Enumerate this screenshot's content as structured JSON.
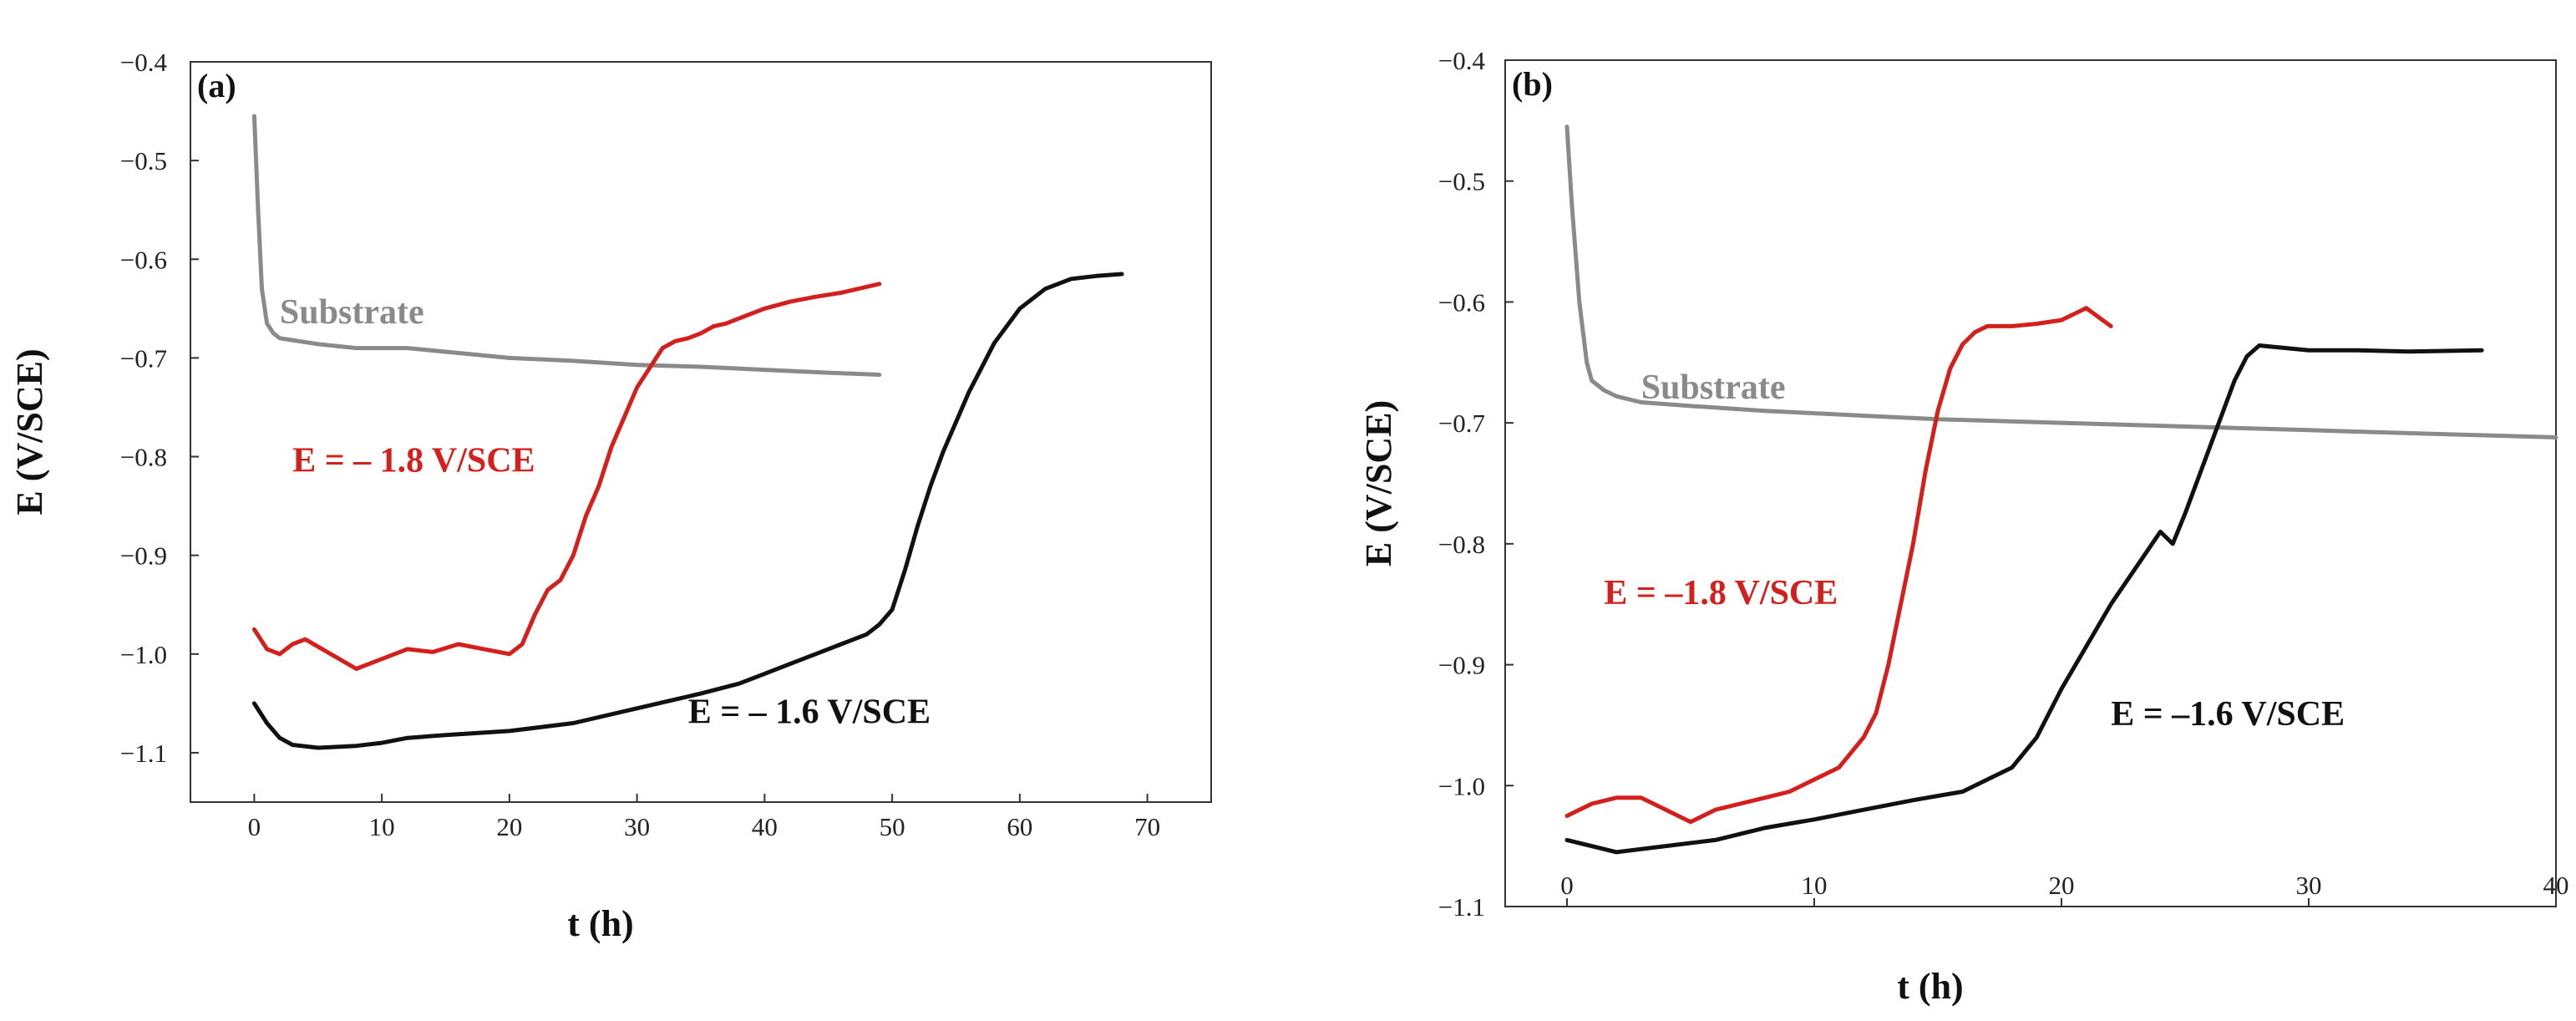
{
  "chart_data": [
    {
      "type": "line",
      "panel_label": "(a)",
      "xlabel": "t (h)",
      "ylabel": "E (V/SCE)",
      "xlim": [
        -5,
        75
      ],
      "ylim": [
        -1.15,
        -0.4
      ],
      "xticks": [
        0,
        10,
        20,
        30,
        40,
        50,
        60,
        70
      ],
      "xtick_labels": [
        "0",
        "10",
        "20",
        "30",
        "40",
        "50",
        "60",
        "70"
      ],
      "yticks": [
        -0.4,
        -0.5,
        -0.6,
        -0.7,
        -0.8,
        -0.9,
        -1.0,
        -1.1
      ],
      "ytick_labels": [
        "−0.4",
        "−0.5",
        "−0.6",
        "−0.7",
        "−0.8",
        "−0.9",
        "−1.0",
        "−1.1"
      ],
      "series": [
        {
          "name": "Substrate",
          "color": "#8a8a8a",
          "x": [
            0,
            0.3,
            0.6,
            1,
            1.5,
            2,
            3,
            5,
            8,
            12,
            16,
            20,
            25,
            30,
            35,
            40,
            45,
            49
          ],
          "y": [
            -0.455,
            -0.55,
            -0.63,
            -0.665,
            -0.675,
            -0.68,
            -0.682,
            -0.686,
            -0.69,
            -0.69,
            -0.695,
            -0.7,
            -0.703,
            -0.707,
            -0.709,
            -0.712,
            -0.715,
            -0.717
          ]
        },
        {
          "name": "E = – 1.8 V/SCE",
          "color": "#d4201c",
          "x": [
            0,
            1,
            2,
            3,
            4,
            6,
            8,
            10,
            12,
            14,
            16,
            18,
            20,
            21,
            22,
            23,
            24,
            25,
            26,
            27,
            28,
            29,
            30,
            31,
            32,
            33,
            34,
            35,
            36,
            37,
            38,
            40,
            42,
            44,
            46,
            48,
            49
          ],
          "y": [
            -0.975,
            -0.995,
            -1.0,
            -0.99,
            -0.985,
            -1.0,
            -1.015,
            -1.005,
            -0.995,
            -0.998,
            -0.99,
            -0.995,
            -1.0,
            -0.99,
            -0.96,
            -0.935,
            -0.925,
            -0.9,
            -0.86,
            -0.83,
            -0.79,
            -0.76,
            -0.73,
            -0.71,
            -0.69,
            -0.683,
            -0.68,
            -0.675,
            -0.668,
            -0.665,
            -0.66,
            -0.65,
            -0.643,
            -0.638,
            -0.634,
            -0.628,
            -0.625
          ]
        },
        {
          "name": "E = – 1.6 V/SCE",
          "color": "#111111",
          "x": [
            0,
            1,
            2,
            3,
            5,
            8,
            10,
            12,
            15,
            20,
            25,
            30,
            35,
            38,
            40,
            42,
            44,
            46,
            48,
            49,
            50,
            51,
            52,
            53,
            54,
            55,
            56,
            57,
            58,
            60,
            62,
            64,
            66,
            68
          ],
          "y": [
            -1.05,
            -1.07,
            -1.085,
            -1.092,
            -1.095,
            -1.093,
            -1.09,
            -1.085,
            -1.082,
            -1.078,
            -1.07,
            -1.055,
            -1.04,
            -1.03,
            -1.02,
            -1.01,
            -1.0,
            -0.99,
            -0.98,
            -0.97,
            -0.955,
            -0.915,
            -0.87,
            -0.83,
            -0.795,
            -0.765,
            -0.735,
            -0.71,
            -0.685,
            -0.65,
            -0.63,
            -0.62,
            -0.617,
            -0.615
          ]
        }
      ],
      "annotations": [
        {
          "text": "Substrate",
          "x": 2,
          "y": -0.665,
          "color": "#8a8a8a"
        },
        {
          "text": "E = – 1.8 V/SCE",
          "x": 3,
          "y": -0.815,
          "color": "#d4201c"
        },
        {
          "text": "E = – 1.6 V/SCE",
          "x": 34,
          "y": -1.07,
          "color": "#111111"
        }
      ]
    },
    {
      "type": "line",
      "panel_label": "(b)",
      "xlabel": "t (h)",
      "ylabel": "E (V/SCE)",
      "xlim": [
        -2.5,
        40
      ],
      "ylim": [
        -1.1,
        -0.4
      ],
      "xticks": [
        0,
        10,
        20,
        30,
        40
      ],
      "xtick_labels": [
        "0",
        "10",
        "20",
        "30",
        "40"
      ],
      "yticks": [
        -0.4,
        -0.5,
        -0.6,
        -0.7,
        -0.8,
        -0.9,
        -1.0,
        -1.1
      ],
      "ytick_labels": [
        "−0.4",
        "−0.5",
        "−0.6",
        "−0.7",
        "−0.8",
        "−0.9",
        "−1.0",
        "−1.1"
      ],
      "series": [
        {
          "name": "Substrate",
          "color": "#8a8a8a",
          "x": [
            0,
            0.2,
            0.5,
            0.8,
            1,
            1.5,
            2,
            3,
            5,
            8,
            10,
            15,
            20,
            25,
            30,
            35,
            40
          ],
          "y": [
            -0.455,
            -0.52,
            -0.6,
            -0.65,
            -0.665,
            -0.673,
            -0.678,
            -0.683,
            -0.686,
            -0.69,
            -0.692,
            -0.697,
            -0.7,
            -0.703,
            -0.706,
            -0.709,
            -0.712
          ]
        },
        {
          "name": "E = –1.8 V/SCE",
          "color": "#d4201c",
          "x": [
            0,
            1,
            2,
            3,
            4,
            5,
            6,
            7,
            8,
            9,
            10,
            11,
            12,
            12.5,
            13,
            13.5,
            14,
            14.5,
            15,
            15.5,
            16,
            16.5,
            17,
            18,
            19,
            20,
            21,
            22
          ],
          "y": [
            -1.025,
            -1.015,
            -1.01,
            -1.01,
            -1.02,
            -1.03,
            -1.02,
            -1.015,
            -1.01,
            -1.005,
            -0.995,
            -0.985,
            -0.96,
            -0.94,
            -0.9,
            -0.85,
            -0.8,
            -0.74,
            -0.69,
            -0.655,
            -0.635,
            -0.625,
            -0.62,
            -0.62,
            -0.618,
            -0.615,
            -0.605,
            -0.62
          ]
        },
        {
          "name": "E = –1.6 V/SCE",
          "color": "#111111",
          "x": [
            0,
            2,
            4,
            6,
            8,
            10,
            12,
            14,
            16,
            17,
            18,
            19,
            20,
            21,
            22,
            23,
            24,
            24.5,
            25,
            26,
            27,
            27.5,
            28,
            29,
            30,
            32,
            34,
            37
          ],
          "y": [
            -1.045,
            -1.055,
            -1.05,
            -1.045,
            -1.035,
            -1.028,
            -1.02,
            -1.012,
            -1.005,
            -0.995,
            -0.985,
            -0.96,
            -0.92,
            -0.885,
            -0.85,
            -0.82,
            -0.79,
            -0.8,
            -0.775,
            -0.72,
            -0.665,
            -0.645,
            -0.636,
            -0.638,
            -0.64,
            -0.64,
            -0.641,
            -0.64
          ]
        }
      ],
      "annotations": [
        {
          "text": "Substrate",
          "x": 3,
          "y": -0.68,
          "color": "#8a8a8a"
        },
        {
          "text": "E = –1.8 V/SCE",
          "x": 1.5,
          "y": -0.85,
          "color": "#d4201c"
        },
        {
          "text": "E = –1.6 V/SCE",
          "x": 22,
          "y": -0.95,
          "color": "#111111"
        }
      ]
    }
  ]
}
